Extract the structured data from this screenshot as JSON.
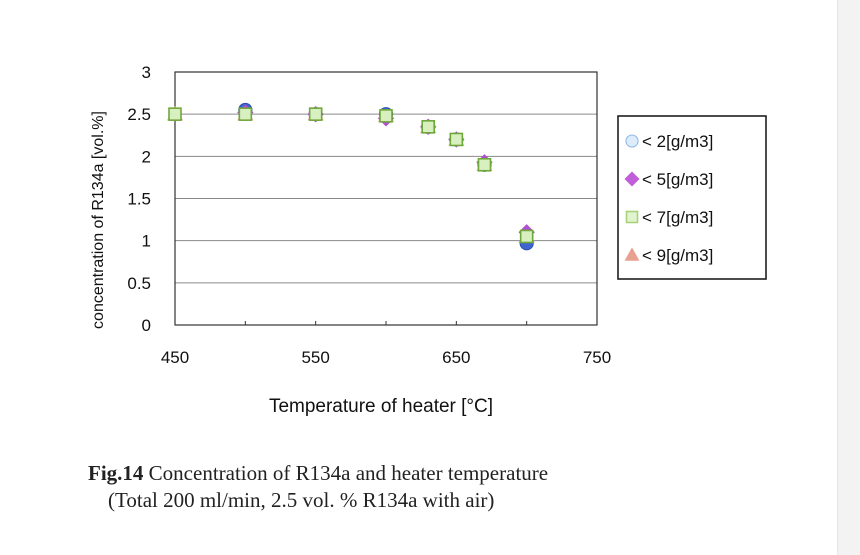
{
  "chart_data": {
    "type": "scatter",
    "title": "",
    "xlabel": "Temperature of heater [°C]",
    "ylabel": "concentration of R134a [vol.%]",
    "xlim": [
      450,
      750
    ],
    "ylim": [
      0,
      3
    ],
    "xticks": [
      "450",
      "550",
      "650",
      "750"
    ],
    "yticks": [
      "0",
      "0.5",
      "1",
      "1.5",
      "2",
      "2.5",
      "3"
    ],
    "grid": "horizontal",
    "legend_position": "right",
    "series": [
      {
        "name": "< 2[g/m3]",
        "marker": "circle",
        "color": "#4a73d6",
        "legend_color": "#a8c8f0",
        "points": [
          [
            500,
            2.55
          ],
          [
            550,
            2.5
          ],
          [
            600,
            2.5
          ],
          [
            630,
            2.35
          ],
          [
            650,
            2.2
          ],
          [
            670,
            1.9
          ],
          [
            700,
            0.97
          ]
        ]
      },
      {
        "name": "< 5[g/m3]",
        "marker": "diamond",
        "color": "#b04fd0",
        "legend_color": "#c05fd8",
        "points": [
          [
            500,
            2.52
          ],
          [
            550,
            2.5
          ],
          [
            600,
            2.45
          ],
          [
            630,
            2.35
          ],
          [
            650,
            2.2
          ],
          [
            670,
            1.93
          ],
          [
            700,
            1.1
          ]
        ]
      },
      {
        "name": "< 7[g/m3]",
        "marker": "square",
        "color": "#8fc850",
        "legend_color": "#cfeab0",
        "points": [
          [
            450,
            2.5
          ],
          [
            500,
            2.5
          ],
          [
            550,
            2.5
          ],
          [
            600,
            2.48
          ],
          [
            630,
            2.35
          ],
          [
            650,
            2.2
          ],
          [
            670,
            1.9
          ],
          [
            700,
            1.05
          ]
        ]
      },
      {
        "name": "< 9[g/m3]",
        "marker": "triangle",
        "color": "#e8a090",
        "legend_color": "#e8a090",
        "points": [
          [
            450,
            2.5
          ],
          [
            500,
            2.5
          ],
          [
            550,
            2.5
          ],
          [
            600,
            2.48
          ],
          [
            630,
            2.35
          ],
          [
            650,
            2.2
          ],
          [
            670,
            1.9
          ],
          [
            700,
            1.05
          ]
        ]
      }
    ]
  },
  "caption": {
    "fig_label": "Fig.14",
    "line1": " Concentration of R134a and heater temperature",
    "line2": "(Total 200 ml/min, 2.5 vol. % R134a with air)"
  }
}
